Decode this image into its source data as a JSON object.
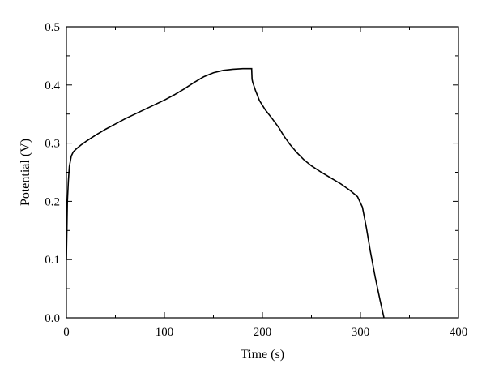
{
  "chart_data": {
    "type": "line",
    "title": "",
    "xlabel": "Time (s)",
    "ylabel": "Potential (V)",
    "xlim": [
      0,
      400
    ],
    "ylim": [
      0,
      0.5
    ],
    "x_ticks": [
      "0",
      "100",
      "200",
      "300",
      "400"
    ],
    "y_ticks": [
      "0.0",
      "0.1",
      "0.2",
      "0.3",
      "0.4",
      "0.5"
    ],
    "x_tick_values": [
      0,
      100,
      200,
      300,
      400
    ],
    "y_tick_values": [
      0,
      0.1,
      0.2,
      0.3,
      0.4,
      0.5
    ],
    "grid": false,
    "legend": "none",
    "series": [
      {
        "x": [
          0,
          0.5,
          1,
          2,
          3,
          5,
          7,
          10,
          15,
          20,
          30,
          40,
          50,
          60,
          70,
          80,
          90,
          100,
          110,
          120,
          130,
          140,
          150,
          160,
          170,
          180,
          189,
          189.4,
          190,
          193,
          197,
          203,
          210,
          217,
          222,
          228,
          235,
          242,
          250,
          260,
          270,
          280,
          290,
          297,
          302,
          306,
          310,
          315,
          320,
          324
        ],
        "y": [
          0.1,
          0.15,
          0.2,
          0.235,
          0.26,
          0.278,
          0.285,
          0.29,
          0.297,
          0.303,
          0.314,
          0.324,
          0.333,
          0.342,
          0.35,
          0.358,
          0.366,
          0.374,
          0.383,
          0.393,
          0.404,
          0.414,
          0.421,
          0.425,
          0.427,
          0.428,
          0.428,
          0.41,
          0.405,
          0.39,
          0.373,
          0.357,
          0.342,
          0.326,
          0.312,
          0.298,
          0.284,
          0.272,
          0.261,
          0.25,
          0.24,
          0.23,
          0.218,
          0.208,
          0.19,
          0.155,
          0.115,
          0.07,
          0.03,
          0.0
        ]
      }
    ]
  }
}
